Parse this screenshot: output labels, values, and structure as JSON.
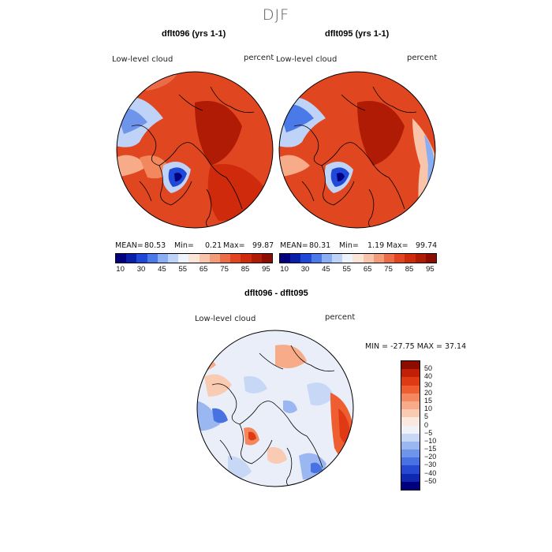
{
  "page_title": "DJF",
  "panels": [
    {
      "title": "dflt096 (yrs 1-1)",
      "variable": "Low-level cloud",
      "units": "percent",
      "mean_label": "MEAN=",
      "mean": "80.53",
      "min_label": "Min=",
      "min": "0.21",
      "max_label": "Max=",
      "max": "99.87"
    },
    {
      "title": "dflt095 (yrs 1-1)",
      "variable": "Low-level cloud",
      "units": "percent",
      "mean_label": "MEAN=",
      "mean": "80.31",
      "min_label": "Min=",
      "min": "1.19",
      "max_label": "Max=",
      "max": "99.74"
    }
  ],
  "abs_colorbar": {
    "labels": [
      "10",
      "30",
      "45",
      "55",
      "65",
      "75",
      "85",
      "95"
    ],
    "colors": [
      "#00007f",
      "#0a1fa8",
      "#1f48d8",
      "#4a7ae8",
      "#8aaef3",
      "#bfd3f8",
      "#eef2fa",
      "#fbe4d8",
      "#f8c4aa",
      "#f39c7a",
      "#ec6c47",
      "#e34522",
      "#cf2a0c",
      "#b01b06",
      "#8c0d00"
    ]
  },
  "diff_panel": {
    "title": "dflt096 - dflt095",
    "variable": "Low-level cloud",
    "units": "percent",
    "min_max_text": "MIN = -27.75 MAX =  37.14"
  },
  "diff_colorbar": {
    "labels": [
      "50",
      "40",
      "30",
      "20",
      "15",
      "10",
      "5",
      "0",
      "−5",
      "−10",
      "−15",
      "−20",
      "−30",
      "−40",
      "−50"
    ],
    "colors": [
      "#8c0d00",
      "#c11f06",
      "#e03a14",
      "#ee5e30",
      "#f3875d",
      "#f7ab89",
      "#f9cbb3",
      "#fbe8df",
      "#f0f2f8",
      "#c7d7f6",
      "#9ab7f1",
      "#6f95ea",
      "#4872e2",
      "#2749d1",
      "#1027b0",
      "#00007f"
    ]
  }
}
